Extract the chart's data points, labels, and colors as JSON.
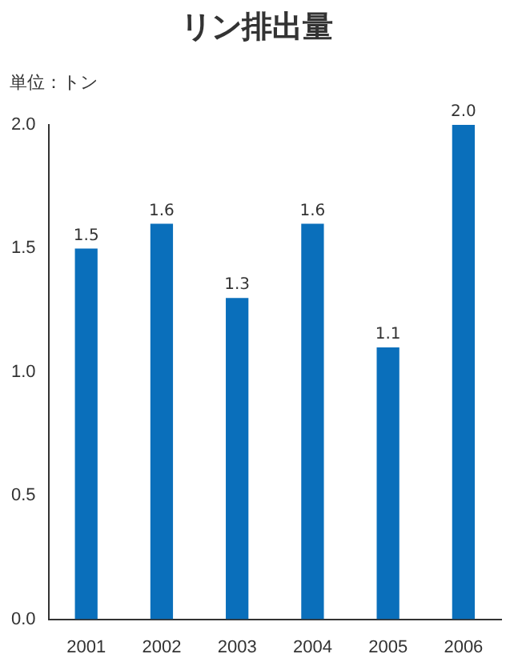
{
  "chart_data": {
    "type": "bar",
    "title": "リン排出量",
    "ylabel": "単位：トン",
    "categories": [
      "2001",
      "2002",
      "2003",
      "2004",
      "2005",
      "2006"
    ],
    "values": [
      1.5,
      1.6,
      1.3,
      1.6,
      1.1,
      2.0
    ],
    "color": "#0a6fbb",
    "ylim": [
      0,
      2.0
    ],
    "yticks": [
      {
        "value": 0,
        "label": "0.0"
      },
      {
        "value": 0.5,
        "label": "0.5"
      },
      {
        "value": 1,
        "label": "1.0"
      },
      {
        "value": 1.5,
        "label": "1.5"
      },
      {
        "value": 2,
        "label": "2.0"
      }
    ],
    "value_labels": [
      "1.5",
      "1.6",
      "1.3",
      "1.6",
      "1.1",
      "2.0"
    ],
    "grid": false,
    "legend": false
  }
}
